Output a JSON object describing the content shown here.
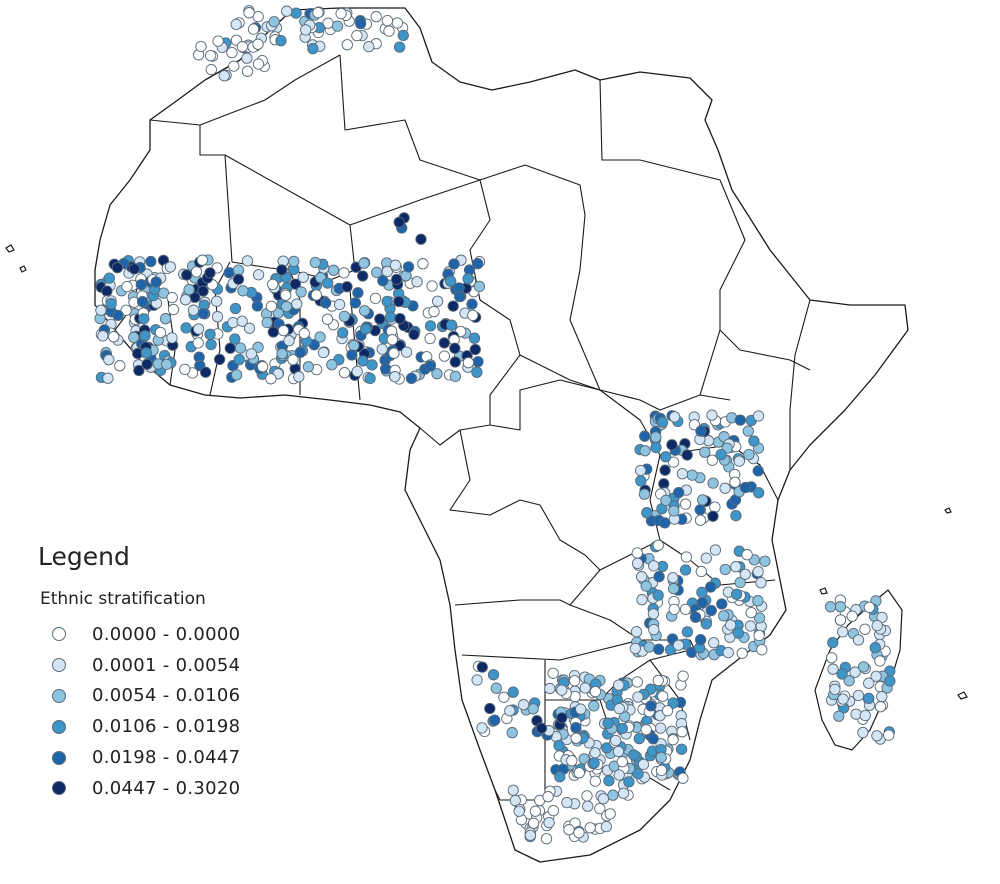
{
  "legend": {
    "title": "Legend",
    "subtitle": "Ethnic stratification",
    "classes": [
      {
        "label": "0.0000 - 0.0000",
        "color": "#ffffff"
      },
      {
        "label": "0.0001 - 0.0054",
        "color": "#d4e6f5"
      },
      {
        "label": "0.0054 - 0.0106",
        "color": "#8ec4e0"
      },
      {
        "label": "0.0106 - 0.0198",
        "color": "#3e95c8"
      },
      {
        "label": "0.0198 - 0.0447",
        "color": "#1f64a8"
      },
      {
        "label": "0.0447 - 0.3020",
        "color": "#0d2a66"
      }
    ]
  }
}
